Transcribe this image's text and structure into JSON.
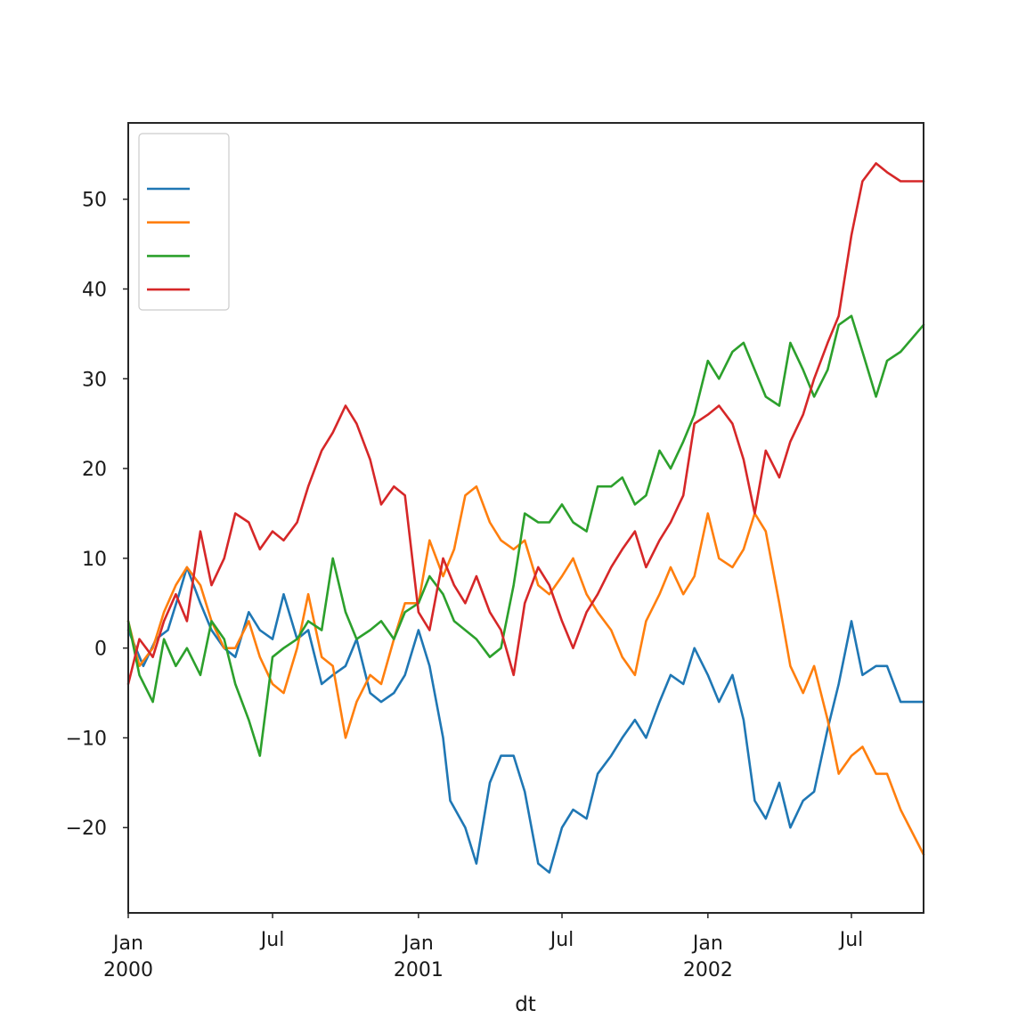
{
  "chart_data": {
    "type": "line",
    "title": "",
    "xlabel": "dt",
    "ylabel": "",
    "x_range": [
      "2000-01-01",
      "2002-09-30"
    ],
    "ylim": [
      -29.5,
      58.5
    ],
    "grid": false,
    "legend_position": "top-left",
    "legend_labels_visible": false,
    "y_ticks": [
      {
        "value": 50,
        "label": "50"
      },
      {
        "value": 40,
        "label": "40"
      },
      {
        "value": 30,
        "label": "30"
      },
      {
        "value": 20,
        "label": "20"
      },
      {
        "value": 10,
        "label": "10"
      },
      {
        "value": 0,
        "label": "0"
      },
      {
        "value": -10,
        "label": "−10"
      },
      {
        "value": -20,
        "label": "−20"
      }
    ],
    "x_ticks": [
      {
        "date": "2000-01-01",
        "label": "Jan",
        "sublabel": "2000"
      },
      {
        "date": "2000-07-01",
        "label": "Jul",
        "sublabel": ""
      },
      {
        "date": "2001-01-01",
        "label": "Jan",
        "sublabel": "2001"
      },
      {
        "date": "2001-07-01",
        "label": "Jul",
        "sublabel": ""
      },
      {
        "date": "2002-01-01",
        "label": "Jan",
        "sublabel": "2002"
      },
      {
        "date": "2002-07-01",
        "label": "Jul",
        "sublabel": ""
      }
    ],
    "series": [
      {
        "color": "#1f77b4",
        "points": [
          [
            "2000-01-01",
            2
          ],
          [
            "2000-01-20",
            -2
          ],
          [
            "2000-02-05",
            1
          ],
          [
            "2000-02-20",
            2
          ],
          [
            "2000-03-05",
            6
          ],
          [
            "2000-03-15",
            9
          ],
          [
            "2000-04-01",
            5
          ],
          [
            "2000-04-15",
            2
          ],
          [
            "2000-05-01",
            0
          ],
          [
            "2000-05-15",
            -1
          ],
          [
            "2000-06-01",
            4
          ],
          [
            "2000-06-15",
            2
          ],
          [
            "2000-07-01",
            1
          ],
          [
            "2000-07-15",
            6
          ],
          [
            "2000-08-01",
            1
          ],
          [
            "2000-08-15",
            2
          ],
          [
            "2000-09-01",
            -4
          ],
          [
            "2000-09-15",
            -3
          ],
          [
            "2000-10-01",
            -2
          ],
          [
            "2000-10-15",
            1
          ],
          [
            "2000-11-01",
            -5
          ],
          [
            "2000-11-15",
            -6
          ],
          [
            "2000-12-01",
            -5
          ],
          [
            "2000-12-15",
            -3
          ],
          [
            "2001-01-01",
            2
          ],
          [
            "2001-01-15",
            -2
          ],
          [
            "2001-02-01",
            -10
          ],
          [
            "2001-02-10",
            -17
          ],
          [
            "2001-03-01",
            -20
          ],
          [
            "2001-03-15",
            -24
          ],
          [
            "2001-04-01",
            -15
          ],
          [
            "2001-04-15",
            -12
          ],
          [
            "2001-05-01",
            -12
          ],
          [
            "2001-05-15",
            -16
          ],
          [
            "2001-06-01",
            -24
          ],
          [
            "2001-06-15",
            -25
          ],
          [
            "2001-07-01",
            -20
          ],
          [
            "2001-07-15",
            -18
          ],
          [
            "2001-08-01",
            -19
          ],
          [
            "2001-08-15",
            -14
          ],
          [
            "2001-09-01",
            -12
          ],
          [
            "2001-09-15",
            -10
          ],
          [
            "2001-10-01",
            -8
          ],
          [
            "2001-10-15",
            -10
          ],
          [
            "2001-11-01",
            -6
          ],
          [
            "2001-11-15",
            -3
          ],
          [
            "2001-12-01",
            -4
          ],
          [
            "2001-12-15",
            0
          ],
          [
            "2002-01-01",
            -3
          ],
          [
            "2002-01-15",
            -6
          ],
          [
            "2002-02-01",
            -3
          ],
          [
            "2002-02-15",
            -8
          ],
          [
            "2002-03-01",
            -17
          ],
          [
            "2002-03-15",
            -19
          ],
          [
            "2002-04-01",
            -15
          ],
          [
            "2002-04-15",
            -20
          ],
          [
            "2002-05-01",
            -17
          ],
          [
            "2002-05-15",
            -16
          ],
          [
            "2002-06-01",
            -9
          ],
          [
            "2002-06-15",
            -4
          ],
          [
            "2002-07-01",
            3
          ],
          [
            "2002-07-15",
            -3
          ],
          [
            "2002-08-01",
            -2
          ],
          [
            "2002-08-15",
            -2
          ],
          [
            "2002-09-01",
            -6
          ],
          [
            "2002-09-30",
            -6
          ]
        ]
      },
      {
        "color": "#ff7f0e",
        "points": [
          [
            "2000-01-01",
            3
          ],
          [
            "2000-01-15",
            -2
          ],
          [
            "2000-02-01",
            0
          ],
          [
            "2000-02-15",
            4
          ],
          [
            "2000-03-01",
            7
          ],
          [
            "2000-03-15",
            9
          ],
          [
            "2000-04-01",
            7
          ],
          [
            "2000-04-15",
            3
          ],
          [
            "2000-05-01",
            0
          ],
          [
            "2000-05-15",
            0
          ],
          [
            "2000-06-01",
            3
          ],
          [
            "2000-06-15",
            -1
          ],
          [
            "2000-07-01",
            -4
          ],
          [
            "2000-07-15",
            -5
          ],
          [
            "2000-08-01",
            0
          ],
          [
            "2000-08-15",
            6
          ],
          [
            "2000-09-01",
            -1
          ],
          [
            "2000-09-15",
            -2
          ],
          [
            "2000-10-01",
            -10
          ],
          [
            "2000-10-15",
            -6
          ],
          [
            "2000-11-01",
            -3
          ],
          [
            "2000-11-15",
            -4
          ],
          [
            "2000-12-01",
            1
          ],
          [
            "2000-12-15",
            5
          ],
          [
            "2001-01-01",
            5
          ],
          [
            "2001-01-15",
            12
          ],
          [
            "2001-02-01",
            8
          ],
          [
            "2001-02-15",
            11
          ],
          [
            "2001-03-01",
            17
          ],
          [
            "2001-03-15",
            18
          ],
          [
            "2001-04-01",
            14
          ],
          [
            "2001-04-15",
            12
          ],
          [
            "2001-05-01",
            11
          ],
          [
            "2001-05-15",
            12
          ],
          [
            "2001-06-01",
            7
          ],
          [
            "2001-06-15",
            6
          ],
          [
            "2001-07-01",
            8
          ],
          [
            "2001-07-15",
            10
          ],
          [
            "2001-08-01",
            6
          ],
          [
            "2001-08-15",
            4
          ],
          [
            "2001-09-01",
            2
          ],
          [
            "2001-09-15",
            -1
          ],
          [
            "2001-10-01",
            -3
          ],
          [
            "2001-10-15",
            3
          ],
          [
            "2001-11-01",
            6
          ],
          [
            "2001-11-15",
            9
          ],
          [
            "2001-12-01",
            6
          ],
          [
            "2001-12-15",
            8
          ],
          [
            "2002-01-01",
            15
          ],
          [
            "2002-01-15",
            10
          ],
          [
            "2002-02-01",
            9
          ],
          [
            "2002-02-15",
            11
          ],
          [
            "2002-03-01",
            15
          ],
          [
            "2002-03-15",
            13
          ],
          [
            "2002-04-01",
            5
          ],
          [
            "2002-04-15",
            -2
          ],
          [
            "2002-05-01",
            -5
          ],
          [
            "2002-05-15",
            -2
          ],
          [
            "2002-06-01",
            -8
          ],
          [
            "2002-06-15",
            -14
          ],
          [
            "2002-07-01",
            -12
          ],
          [
            "2002-07-15",
            -11
          ],
          [
            "2002-08-01",
            -14
          ],
          [
            "2002-08-15",
            -14
          ],
          [
            "2002-09-01",
            -18
          ],
          [
            "2002-09-30",
            -23
          ]
        ]
      },
      {
        "color": "#2ca02c",
        "points": [
          [
            "2000-01-01",
            3
          ],
          [
            "2000-01-15",
            -3
          ],
          [
            "2000-02-01",
            -6
          ],
          [
            "2000-02-15",
            1
          ],
          [
            "2000-03-01",
            -2
          ],
          [
            "2000-03-15",
            0
          ],
          [
            "2000-04-01",
            -3
          ],
          [
            "2000-04-15",
            3
          ],
          [
            "2000-05-01",
            1
          ],
          [
            "2000-05-15",
            -4
          ],
          [
            "2000-06-01",
            -8
          ],
          [
            "2000-06-15",
            -12
          ],
          [
            "2000-07-01",
            -1
          ],
          [
            "2000-07-15",
            0
          ],
          [
            "2000-08-01",
            1
          ],
          [
            "2000-08-15",
            3
          ],
          [
            "2000-09-01",
            2
          ],
          [
            "2000-09-15",
            10
          ],
          [
            "2000-10-01",
            4
          ],
          [
            "2000-10-15",
            1
          ],
          [
            "2000-11-01",
            2
          ],
          [
            "2000-11-15",
            3
          ],
          [
            "2000-12-01",
            1
          ],
          [
            "2000-12-15",
            4
          ],
          [
            "2001-01-01",
            5
          ],
          [
            "2001-01-15",
            8
          ],
          [
            "2001-02-01",
            6
          ],
          [
            "2001-02-15",
            3
          ],
          [
            "2001-03-01",
            2
          ],
          [
            "2001-03-15",
            1
          ],
          [
            "2001-04-01",
            -1
          ],
          [
            "2001-04-15",
            0
          ],
          [
            "2001-05-01",
            7
          ],
          [
            "2001-05-15",
            15
          ],
          [
            "2001-06-01",
            14
          ],
          [
            "2001-06-15",
            14
          ],
          [
            "2001-07-01",
            16
          ],
          [
            "2001-07-15",
            14
          ],
          [
            "2001-08-01",
            13
          ],
          [
            "2001-08-15",
            18
          ],
          [
            "2001-09-01",
            18
          ],
          [
            "2001-09-15",
            19
          ],
          [
            "2001-10-01",
            16
          ],
          [
            "2001-10-15",
            17
          ],
          [
            "2001-11-01",
            22
          ],
          [
            "2001-11-15",
            20
          ],
          [
            "2001-12-01",
            23
          ],
          [
            "2001-12-15",
            26
          ],
          [
            "2002-01-01",
            32
          ],
          [
            "2002-01-15",
            30
          ],
          [
            "2002-02-01",
            33
          ],
          [
            "2002-02-15",
            34
          ],
          [
            "2002-03-01",
            31
          ],
          [
            "2002-03-15",
            28
          ],
          [
            "2002-04-01",
            27
          ],
          [
            "2002-04-15",
            34
          ],
          [
            "2002-05-01",
            31
          ],
          [
            "2002-05-15",
            28
          ],
          [
            "2002-06-01",
            31
          ],
          [
            "2002-06-15",
            36
          ],
          [
            "2002-07-01",
            37
          ],
          [
            "2002-07-15",
            33
          ],
          [
            "2002-08-01",
            28
          ],
          [
            "2002-08-15",
            32
          ],
          [
            "2002-09-01",
            33
          ],
          [
            "2002-09-30",
            36
          ]
        ]
      },
      {
        "color": "#d62728",
        "points": [
          [
            "2000-01-01",
            -4
          ],
          [
            "2000-01-15",
            1
          ],
          [
            "2000-02-01",
            -1
          ],
          [
            "2000-02-15",
            3
          ],
          [
            "2000-03-01",
            6
          ],
          [
            "2000-03-15",
            3
          ],
          [
            "2000-04-01",
            13
          ],
          [
            "2000-04-15",
            7
          ],
          [
            "2000-05-01",
            10
          ],
          [
            "2000-05-15",
            15
          ],
          [
            "2000-06-01",
            14
          ],
          [
            "2000-06-15",
            11
          ],
          [
            "2000-07-01",
            13
          ],
          [
            "2000-07-15",
            12
          ],
          [
            "2000-08-01",
            14
          ],
          [
            "2000-08-15",
            18
          ],
          [
            "2000-09-01",
            22
          ],
          [
            "2000-09-15",
            24
          ],
          [
            "2000-10-01",
            27
          ],
          [
            "2000-10-15",
            25
          ],
          [
            "2000-11-01",
            21
          ],
          [
            "2000-11-15",
            16
          ],
          [
            "2000-12-01",
            18
          ],
          [
            "2000-12-15",
            17
          ],
          [
            "2001-01-01",
            4
          ],
          [
            "2001-01-15",
            2
          ],
          [
            "2001-02-01",
            10
          ],
          [
            "2001-02-15",
            7
          ],
          [
            "2001-03-01",
            5
          ],
          [
            "2001-03-15",
            8
          ],
          [
            "2001-04-01",
            4
          ],
          [
            "2001-04-15",
            2
          ],
          [
            "2001-05-01",
            -3
          ],
          [
            "2001-05-15",
            5
          ],
          [
            "2001-06-01",
            9
          ],
          [
            "2001-06-15",
            7
          ],
          [
            "2001-07-01",
            3
          ],
          [
            "2001-07-15",
            0
          ],
          [
            "2001-08-01",
            4
          ],
          [
            "2001-08-15",
            6
          ],
          [
            "2001-09-01",
            9
          ],
          [
            "2001-09-15",
            11
          ],
          [
            "2001-10-01",
            13
          ],
          [
            "2001-10-15",
            9
          ],
          [
            "2001-11-01",
            12
          ],
          [
            "2001-11-15",
            14
          ],
          [
            "2001-12-01",
            17
          ],
          [
            "2001-12-15",
            25
          ],
          [
            "2002-01-01",
            26
          ],
          [
            "2002-01-15",
            27
          ],
          [
            "2002-02-01",
            25
          ],
          [
            "2002-02-15",
            21
          ],
          [
            "2002-03-01",
            15
          ],
          [
            "2002-03-15",
            22
          ],
          [
            "2002-04-01",
            19
          ],
          [
            "2002-04-15",
            23
          ],
          [
            "2002-05-01",
            26
          ],
          [
            "2002-05-15",
            30
          ],
          [
            "2002-06-01",
            34
          ],
          [
            "2002-06-15",
            37
          ],
          [
            "2002-07-01",
            46
          ],
          [
            "2002-07-15",
            52
          ],
          [
            "2002-08-01",
            54
          ],
          [
            "2002-08-15",
            53
          ],
          [
            "2002-09-01",
            52
          ],
          [
            "2002-09-30",
            52
          ]
        ]
      }
    ]
  }
}
